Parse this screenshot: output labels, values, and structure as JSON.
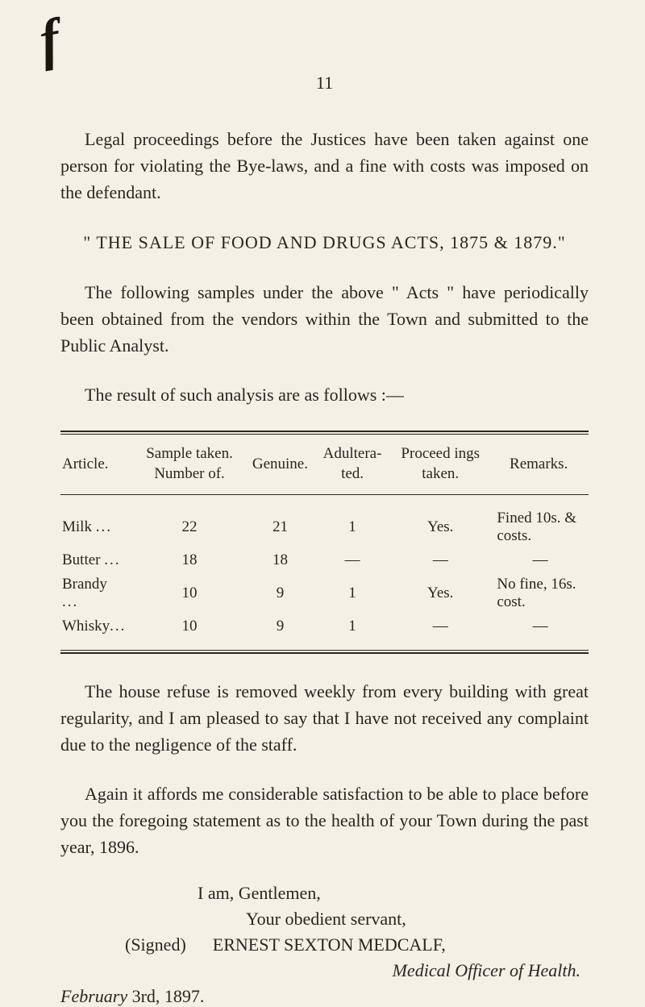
{
  "page_number": "11",
  "decoration_char": "f",
  "paragraphs": {
    "p1": "Legal proceedings before the Justices have been taken against one person for violating the Bye-laws, and a fine with costs was imposed on the defendant.",
    "heading": "\" THE SALE OF FOOD AND DRUGS ACTS, 1875 & 1879.\"",
    "p2": "The following samples under the above \" Acts \" have periodically been obtained from the vendors within the Town and submitted to the Public Analyst.",
    "p3": "The result of such analysis are as follows :—",
    "p4": "The house refuse is removed weekly from every build­ing with great regularity, and I am pleased to say that I have not received any complaint due to the negligence of the staff.",
    "p5": "Again it affords me considerable satisfaction to be able to place before you the foregoing statement as to the health of your Town during the past year, 1896."
  },
  "table": {
    "headers": {
      "h1": "Article.",
      "h2": "Sample taken. Number of.",
      "h3": "Genuine.",
      "h4": "Adultera­ ted.",
      "h5": "Proceed­ ings taken.",
      "h6": "Remarks."
    },
    "rows": [
      {
        "article": "Milk",
        "dots": "...",
        "sample": "22",
        "genuine": "21",
        "adulterated": "1",
        "proceedings": "Yes.",
        "remarks": "Fined 10s. & costs."
      },
      {
        "article": "Butter",
        "dots": "...",
        "sample": "18",
        "genuine": "18",
        "adulterated": "—",
        "proceedings": "—",
        "remarks": "—"
      },
      {
        "article": "Brandy",
        "dots": "...",
        "sample": "10",
        "genuine": "9",
        "adulterated": "1",
        "proceedings": "Yes.",
        "remarks": "No fine, 16s. cost."
      },
      {
        "article": "Whisky",
        "dots": "...",
        "sample": "10",
        "genuine": "9",
        "adulterated": "1",
        "proceedings": "—",
        "remarks": "—"
      }
    ]
  },
  "closing": {
    "line1": "I am, Gentlemen,",
    "line2": "Your obedient servant,",
    "line3_signed": "(Signed)",
    "line3_name": "ERNEST SEXTON MEDCALF,",
    "line4": "Medical Officer of Health.",
    "date_prefix": "February ",
    "date_rest": "3rd, 1897."
  },
  "colors": {
    "background": "#f5f0e6",
    "text": "#2a2520",
    "border": "#2a2520"
  }
}
